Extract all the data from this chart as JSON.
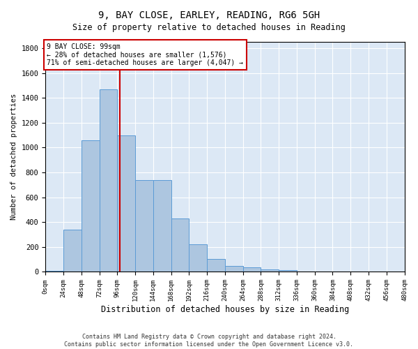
{
  "title1": "9, BAY CLOSE, EARLEY, READING, RG6 5GH",
  "title2": "Size of property relative to detached houses in Reading",
  "xlabel": "Distribution of detached houses by size in Reading",
  "ylabel": "Number of detached properties",
  "bar_values": [
    10,
    340,
    1060,
    1470,
    1100,
    740,
    740,
    430,
    220,
    105,
    50,
    35,
    20,
    15,
    5,
    0,
    0,
    0,
    0,
    0
  ],
  "bin_edges": [
    0,
    24,
    48,
    72,
    96,
    120,
    144,
    168,
    192,
    216,
    240,
    264,
    288,
    312,
    336,
    360,
    384,
    408,
    432,
    456,
    480
  ],
  "bin_labels": [
    "0sqm",
    "24sqm",
    "48sqm",
    "72sqm",
    "96sqm",
    "120sqm",
    "144sqm",
    "168sqm",
    "192sqm",
    "216sqm",
    "240sqm",
    "264sqm",
    "288sqm",
    "312sqm",
    "336sqm",
    "360sqm",
    "384sqm",
    "408sqm",
    "432sqm",
    "456sqm",
    "480sqm"
  ],
  "property_size": 99,
  "property_label": "9 BAY CLOSE: 99sqm",
  "annotation_line1": "← 28% of detached houses are smaller (1,576)",
  "annotation_line2": "71% of semi-detached houses are larger (4,047) →",
  "bar_color": "#adc6e0",
  "bar_edge_color": "#5b9bd5",
  "line_color": "#cc0000",
  "box_edge_color": "#cc0000",
  "background_color": "#ffffff",
  "plot_bg_color": "#dce8f5",
  "grid_color": "#ffffff",
  "ylim": [
    0,
    1850
  ],
  "yticks": [
    0,
    200,
    400,
    600,
    800,
    1000,
    1200,
    1400,
    1600,
    1800
  ],
  "footnote1": "Contains HM Land Registry data © Crown copyright and database right 2024.",
  "footnote2": "Contains public sector information licensed under the Open Government Licence v3.0."
}
